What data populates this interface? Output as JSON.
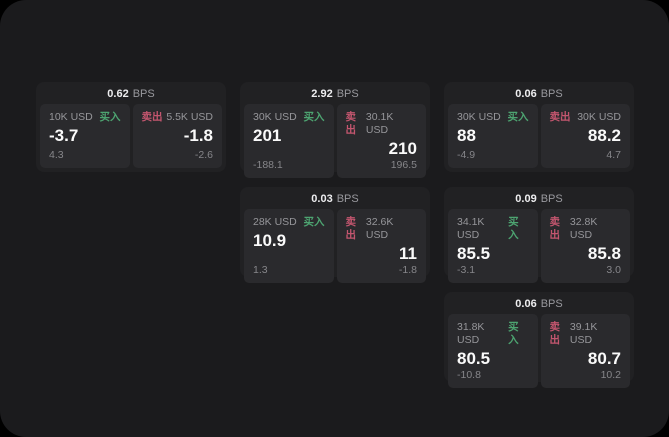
{
  "labels": {
    "buy": "买入",
    "sell": "卖出",
    "bps_unit": "BPS"
  },
  "colors": {
    "page_background": "#000000",
    "window_background": "#1b1b1d",
    "card_background": "#212123",
    "panel_background": "#2a2a2d",
    "buy_green": "#4da471",
    "sell_red": "#c4566f",
    "muted_text": "#96969a",
    "value_text": "#fafafa"
  },
  "cards": [
    {
      "bps": "0.62",
      "buy": {
        "amount": "10K USD",
        "price": "-3.7",
        "change": "4.3"
      },
      "sell": {
        "amount": "5.5K USD",
        "price": "-1.8",
        "change": "-2.6"
      }
    },
    {
      "bps": "2.92",
      "buy": {
        "amount": "30K USD",
        "price": "201",
        "change": "-188.1"
      },
      "sell": {
        "amount": "30.1K USD",
        "price": "210",
        "change": "196.5"
      }
    },
    {
      "bps": "0.06",
      "buy": {
        "amount": "30K USD",
        "price": "88",
        "change": "-4.9"
      },
      "sell": {
        "amount": "30K USD",
        "price": "88.2",
        "change": "4.7"
      }
    },
    {
      "bps": "0.03",
      "buy": {
        "amount": "28K USD",
        "price": "10.9",
        "change": "1.3"
      },
      "sell": {
        "amount": "32.6K USD",
        "price": "11",
        "change": "-1.8"
      }
    },
    {
      "bps": "0.09",
      "buy": {
        "amount": "34.1K USD",
        "price": "85.5",
        "change": "-3.1"
      },
      "sell": {
        "amount": "32.8K USD",
        "price": "85.8",
        "change": "3.0"
      }
    },
    {
      "bps": "0.06",
      "buy": {
        "amount": "31.8K USD",
        "price": "80.5",
        "change": "-10.8"
      },
      "sell": {
        "amount": "39.1K USD",
        "price": "80.7",
        "change": "10.2"
      }
    }
  ]
}
